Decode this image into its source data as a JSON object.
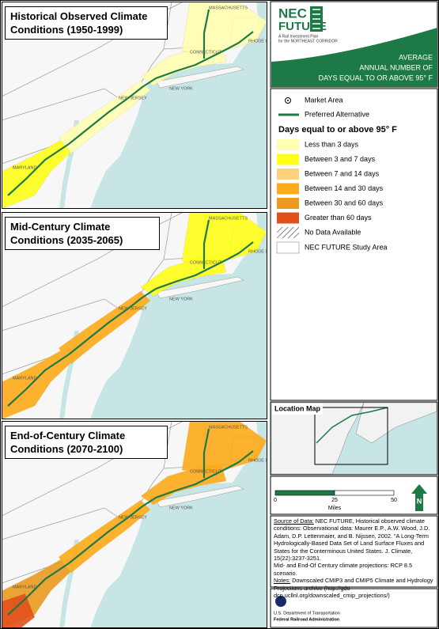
{
  "panels": [
    {
      "title": "Historical Observed Climate Conditions (1950-1999)"
    },
    {
      "title": "Mid-Century Climate Conditions (2035-2065)"
    },
    {
      "title": "End-of-Century Climate Conditions (2070-2100)"
    }
  ],
  "map_labels": [
    "MASSACHUSETTS",
    "CONNECTICUT",
    "RHODE ISLAND",
    "NEW YORK",
    "NEW JERSEY",
    "MARYLAND"
  ],
  "logo": {
    "name_top": "NEC",
    "name_bottom": "FUTURE",
    "tagline_1": "A Rail Investment Plan",
    "tagline_2": "for the NORTHEAST CORRIDOR"
  },
  "map_title": [
    "AVERAGE",
    "ANNUAL NUMBER OF",
    "DAYS EQUAL TO OR ABOVE 95° F"
  ],
  "legend": {
    "symbols": [
      {
        "label": "Market Area"
      },
      {
        "label": "Preferred Alternative",
        "color": "#1d7a47"
      }
    ],
    "heading": "Days equal to or above 95° F",
    "classes": [
      {
        "label": "Less than 3 days",
        "color": "#ffffb2"
      },
      {
        "label": "Between 3 and 7 days",
        "color": "#ffff1a"
      },
      {
        "label": "Between 7 and 14 days",
        "color": "#fed17e"
      },
      {
        "label": "Between 14 and 30 days",
        "color": "#fdab19"
      },
      {
        "label": "Between 30 and 60 days",
        "color": "#ea9a1e"
      },
      {
        "label": "Greater than 60 days",
        "color": "#e2501b"
      }
    ],
    "other": [
      {
        "label": "No Data Available"
      },
      {
        "label": "NEC FUTURE Study Area"
      }
    ]
  },
  "location_map": {
    "title": "Location Map"
  },
  "scale_bar": {
    "ticks": [
      0,
      25,
      50
    ],
    "unit": "Miles",
    "north": "N"
  },
  "source": {
    "paragraphs": [
      {
        "label": "Source of Data:",
        "text": "NEC FUTURE, Historical observed climate conditions: Observational data: Maurer E.P., A.W. Wood, J.D. Adam, D.P. Lettenmaier, and B. Nijssen, 2002. \"A Long-Term Hydrologically-Based Data Set of Land Surface Fluxes and States for the Conterminous United States. J. Climate, 15(22):3237-3251."
      },
      {
        "text": "Mid- and End-Of Century climate projections: RCP 8.5 scenario."
      },
      {
        "label": "Notes:",
        "text": "Downscaled CMIP3 and CMIP5 Climate and Hydrology Projections archive (http://gdo-dcp.ucllnl.org/downscaled_cmip_projections/)"
      }
    ]
  },
  "footer": {
    "line_1": "U.S. Department of Transportation",
    "line_2": "Federal Railroad Administration"
  }
}
